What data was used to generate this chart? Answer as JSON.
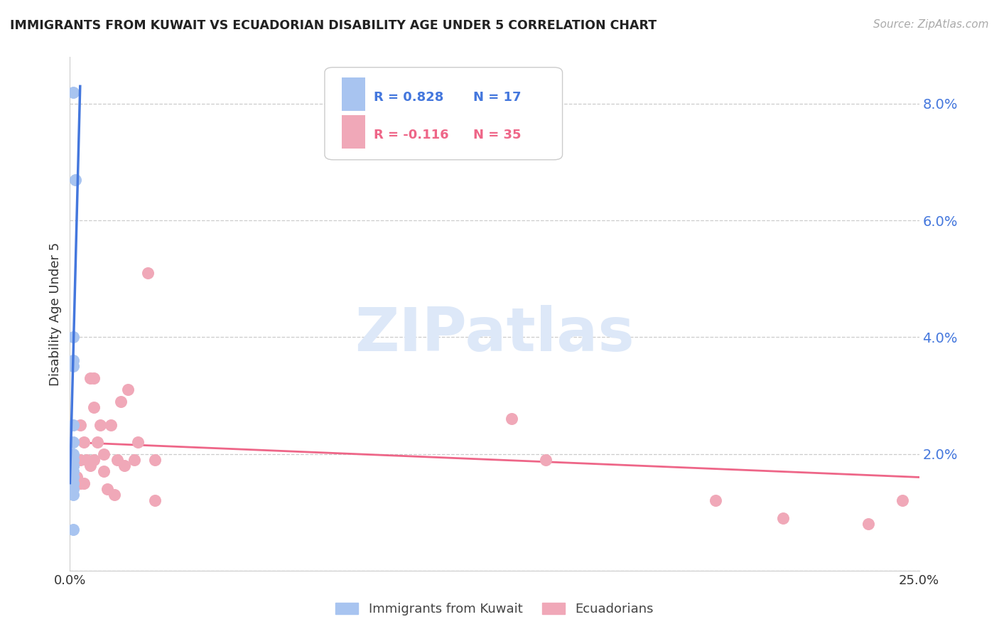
{
  "title": "IMMIGRANTS FROM KUWAIT VS ECUADORIAN DISABILITY AGE UNDER 5 CORRELATION CHART",
  "source": "Source: ZipAtlas.com",
  "ylabel": "Disability Age Under 5",
  "yticks": [
    0.0,
    0.02,
    0.04,
    0.06,
    0.08
  ],
  "ytick_labels": [
    "",
    "2.0%",
    "4.0%",
    "6.0%",
    "8.0%"
  ],
  "xlim": [
    0.0,
    0.25
  ],
  "ylim": [
    0.0,
    0.088
  ],
  "legend_blue_R": "R = 0.828",
  "legend_blue_N": "N = 17",
  "legend_pink_R": "R = -0.116",
  "legend_pink_N": "N = 35",
  "blue_color": "#a8c4f0",
  "pink_color": "#f0a8b8",
  "blue_line_color": "#4477dd",
  "pink_line_color": "#ee6688",
  "blue_legend_color": "#4477dd",
  "pink_legend_color": "#ee6688",
  "watermark_color": "#dde8f8",
  "blue_scatter_x": [
    0.001,
    0.0015,
    0.001,
    0.001,
    0.001,
    0.001,
    0.001,
    0.001,
    0.001,
    0.001,
    0.001,
    0.001,
    0.001,
    0.001,
    0.001,
    0.001,
    0.001
  ],
  "blue_scatter_y": [
    0.082,
    0.067,
    0.04,
    0.036,
    0.035,
    0.025,
    0.022,
    0.02,
    0.019,
    0.018,
    0.018,
    0.017,
    0.016,
    0.015,
    0.014,
    0.013,
    0.007
  ],
  "pink_scatter_x": [
    0.001,
    0.002,
    0.003,
    0.003,
    0.003,
    0.004,
    0.004,
    0.005,
    0.006,
    0.006,
    0.007,
    0.007,
    0.007,
    0.008,
    0.009,
    0.01,
    0.01,
    0.011,
    0.012,
    0.013,
    0.014,
    0.015,
    0.016,
    0.017,
    0.019,
    0.02,
    0.023,
    0.025,
    0.025,
    0.13,
    0.14,
    0.19,
    0.21,
    0.235,
    0.245
  ],
  "pink_scatter_y": [
    0.018,
    0.016,
    0.015,
    0.019,
    0.025,
    0.022,
    0.015,
    0.019,
    0.033,
    0.018,
    0.033,
    0.028,
    0.019,
    0.022,
    0.025,
    0.02,
    0.017,
    0.014,
    0.025,
    0.013,
    0.019,
    0.029,
    0.018,
    0.031,
    0.019,
    0.022,
    0.051,
    0.019,
    0.012,
    0.026,
    0.019,
    0.012,
    0.009,
    0.008,
    0.012
  ],
  "blue_trend_x": [
    0.0,
    0.003
  ],
  "blue_trend_y": [
    0.015,
    0.083
  ],
  "pink_trend_x": [
    0.0,
    0.25
  ],
  "pink_trend_y": [
    0.022,
    0.016
  ]
}
